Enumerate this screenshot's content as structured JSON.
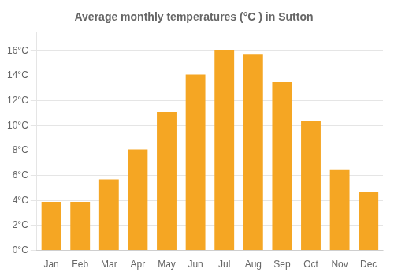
{
  "chart_data": {
    "type": "bar",
    "title": "Average monthly temperatures (°C ) in Sutton",
    "categories": [
      "Jan",
      "Feb",
      "Mar",
      "Apr",
      "May",
      "Jun",
      "Jul",
      "Aug",
      "Sep",
      "Oct",
      "Nov",
      "Dec"
    ],
    "values": [
      3.9,
      3.9,
      5.7,
      8.1,
      11.1,
      14.1,
      16.1,
      15.7,
      13.5,
      10.4,
      6.5,
      4.7
    ],
    "color": "#F5A623",
    "ylim": [
      0,
      17.5
    ],
    "yticks": [
      {
        "value": 0,
        "label": "0°C"
      },
      {
        "value": 2,
        "label": "2°C"
      },
      {
        "value": 4,
        "label": "4°C"
      },
      {
        "value": 6,
        "label": "6°C"
      },
      {
        "value": 8,
        "label": "8°C"
      },
      {
        "value": 10,
        "label": "10°C"
      },
      {
        "value": 12,
        "label": "12°C"
      },
      {
        "value": 14,
        "label": "14°C"
      },
      {
        "value": 16,
        "label": "16°C"
      }
    ],
    "grid": true
  }
}
